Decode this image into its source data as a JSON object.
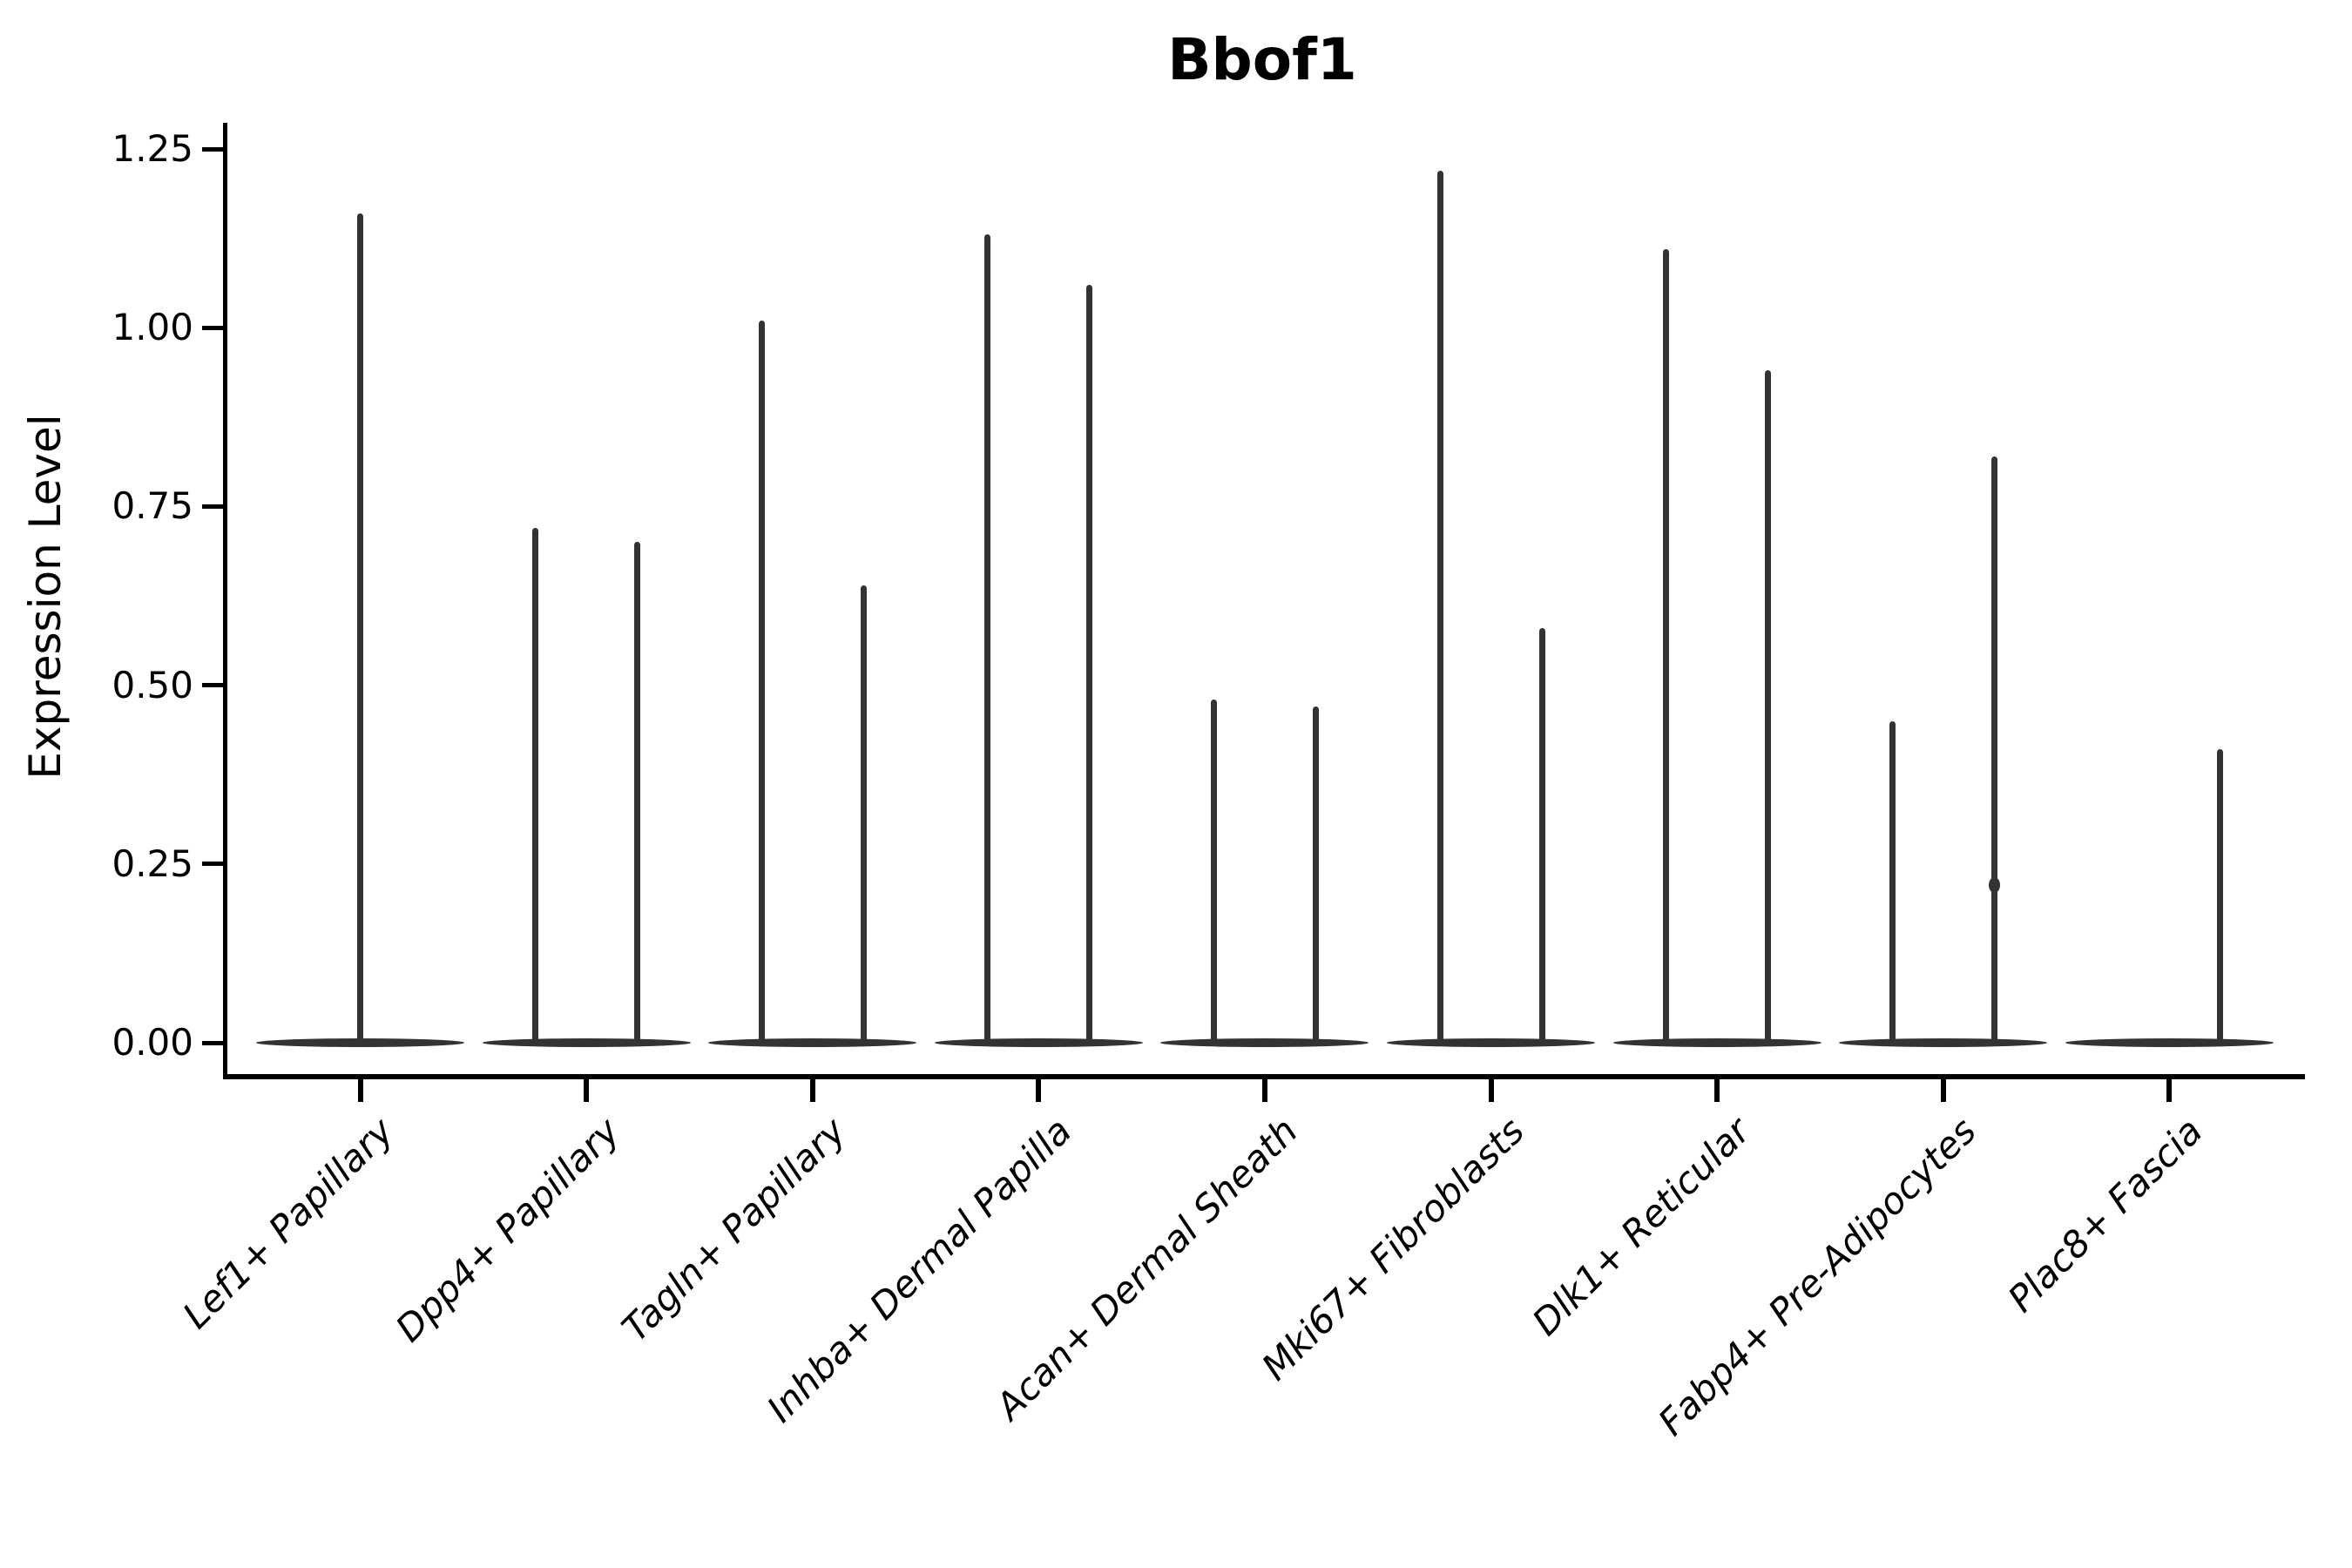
{
  "chart_data": {
    "type": "violin",
    "title": "Bbof1",
    "xlabel": "",
    "ylabel": "Expression Level",
    "ylim": [
      -0.05,
      1.29
    ],
    "ytick_values": [
      0.0,
      0.25,
      0.5,
      0.75,
      1.0,
      1.25
    ],
    "ytick_labels": [
      "0.00",
      "0.25",
      "0.50",
      "0.75",
      "1.00",
      "1.25"
    ],
    "grid": false,
    "legend": "none",
    "baseline_value": 0.0,
    "note": "Each violin is a flat lens of density at 0 with a thin spike up to its maximum expression value",
    "colors": {
      "violin": "#333333",
      "axis": "#000000",
      "text": "#000000",
      "background": "#ffffff"
    },
    "categories": [
      {
        "label": "Lef1+ Papillary",
        "violins": [
          {
            "slot": "center",
            "max": 1.16
          }
        ]
      },
      {
        "label": "Dpp4+ Papillary",
        "violins": [
          {
            "slot": "left",
            "max": 0.72
          },
          {
            "slot": "right",
            "max": 0.7
          }
        ]
      },
      {
        "label": "Tagln+ Papillary",
        "violins": [
          {
            "slot": "left",
            "max": 1.01
          },
          {
            "slot": "right",
            "max": 0.64
          }
        ]
      },
      {
        "label": "Inhba+ Dermal Papilla",
        "violins": [
          {
            "slot": "left",
            "max": 1.13
          },
          {
            "slot": "right",
            "max": 1.06
          }
        ]
      },
      {
        "label": "Acan+ Dermal Sheath",
        "violins": [
          {
            "slot": "left",
            "max": 0.48
          },
          {
            "slot": "right",
            "max": 0.47
          }
        ]
      },
      {
        "label": "Mki67+ Fibroblasts",
        "violins": [
          {
            "slot": "left",
            "max": 1.22
          },
          {
            "slot": "right",
            "max": 0.58
          }
        ]
      },
      {
        "label": "Dlk1+ Reticular",
        "violins": [
          {
            "slot": "left",
            "max": 1.11
          },
          {
            "slot": "right",
            "max": 0.94
          }
        ]
      },
      {
        "label": "Fabp4+ Pre-Adipocytes",
        "violins": [
          {
            "slot": "left",
            "max": 0.45
          },
          {
            "slot": "right",
            "max": 0.82,
            "bulges": [
              0.22
            ]
          }
        ]
      },
      {
        "label": "Plac8+ Fascia",
        "violins": [
          {
            "slot": "right",
            "max": 0.41
          }
        ]
      }
    ]
  }
}
